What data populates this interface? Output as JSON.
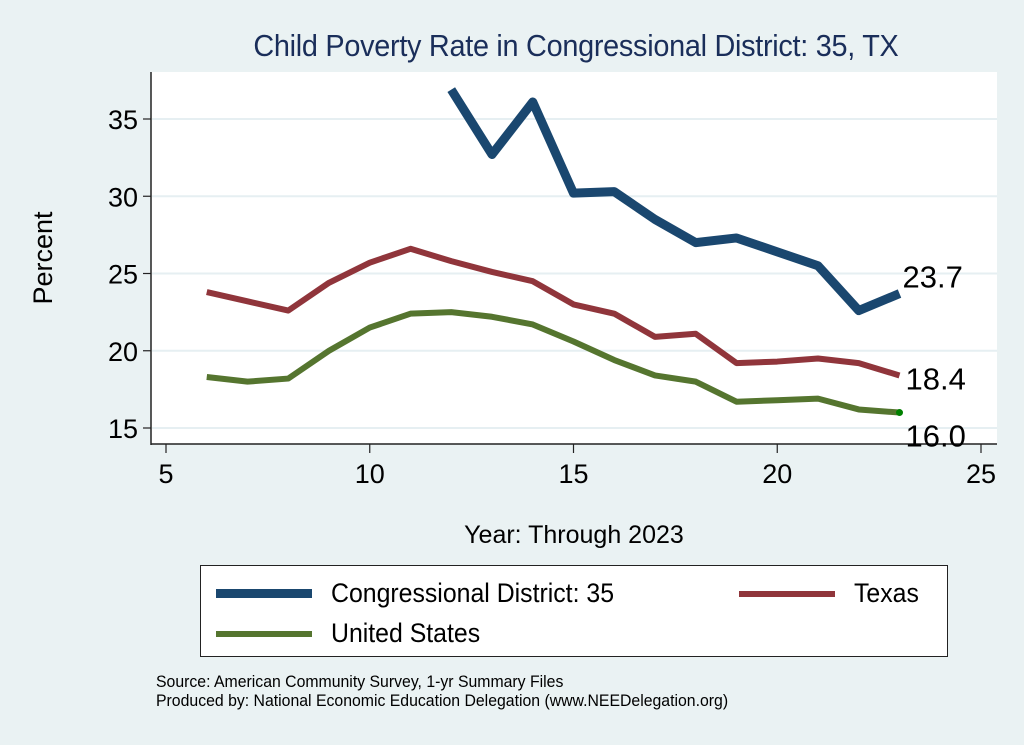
{
  "chart_data": {
    "type": "line",
    "title": "Child Poverty Rate in Congressional District:  35, TX",
    "xlabel": "Year: Through 2023",
    "ylabel": "Percent",
    "xlim": [
      5,
      25
    ],
    "ylim": [
      15,
      37
    ],
    "xticks": [
      5,
      10,
      15,
      20,
      25
    ],
    "yticks": [
      15,
      20,
      25,
      30,
      35
    ],
    "grid": "horizontal",
    "legend_position": "bottom",
    "series": [
      {
        "name": "Congressional District:  35",
        "color": "#1a476f",
        "x": [
          12,
          13,
          14,
          15,
          16,
          17,
          18,
          19,
          20,
          21,
          22,
          23
        ],
        "values": [
          36.9,
          32.7,
          36.1,
          30.2,
          30.3,
          28.5,
          27.0,
          27.3,
          26.4,
          25.5,
          22.6,
          23.7
        ],
        "end_label": "23.7"
      },
      {
        "name": "Texas",
        "color": "#90353b",
        "x": [
          6,
          7,
          8,
          9,
          10,
          11,
          12,
          13,
          14,
          15,
          16,
          17,
          18,
          19,
          20,
          21,
          22,
          23
        ],
        "values": [
          23.8,
          23.2,
          22.6,
          24.4,
          25.7,
          26.6,
          25.8,
          25.1,
          24.5,
          23.0,
          22.4,
          20.9,
          21.1,
          19.2,
          19.3,
          19.5,
          19.2,
          18.4
        ],
        "end_label": "18.4"
      },
      {
        "name": "United States",
        "color": "#55752f",
        "x": [
          6,
          7,
          8,
          9,
          10,
          11,
          12,
          13,
          14,
          15,
          16,
          17,
          18,
          19,
          20,
          21,
          22,
          23
        ],
        "values": [
          18.3,
          18.0,
          18.2,
          20.0,
          21.5,
          22.4,
          22.5,
          22.2,
          21.7,
          20.6,
          19.4,
          18.4,
          18.0,
          16.7,
          16.8,
          16.9,
          16.2,
          16.0
        ],
        "end_label": "16.0",
        "end_marker_color": "#008000"
      }
    ]
  },
  "notes": {
    "source": "Source: American Community Survey, 1-yr Summary Files",
    "producer": "Produced by: National Economic Education Delegation (www.NEEDelegation.org)"
  }
}
